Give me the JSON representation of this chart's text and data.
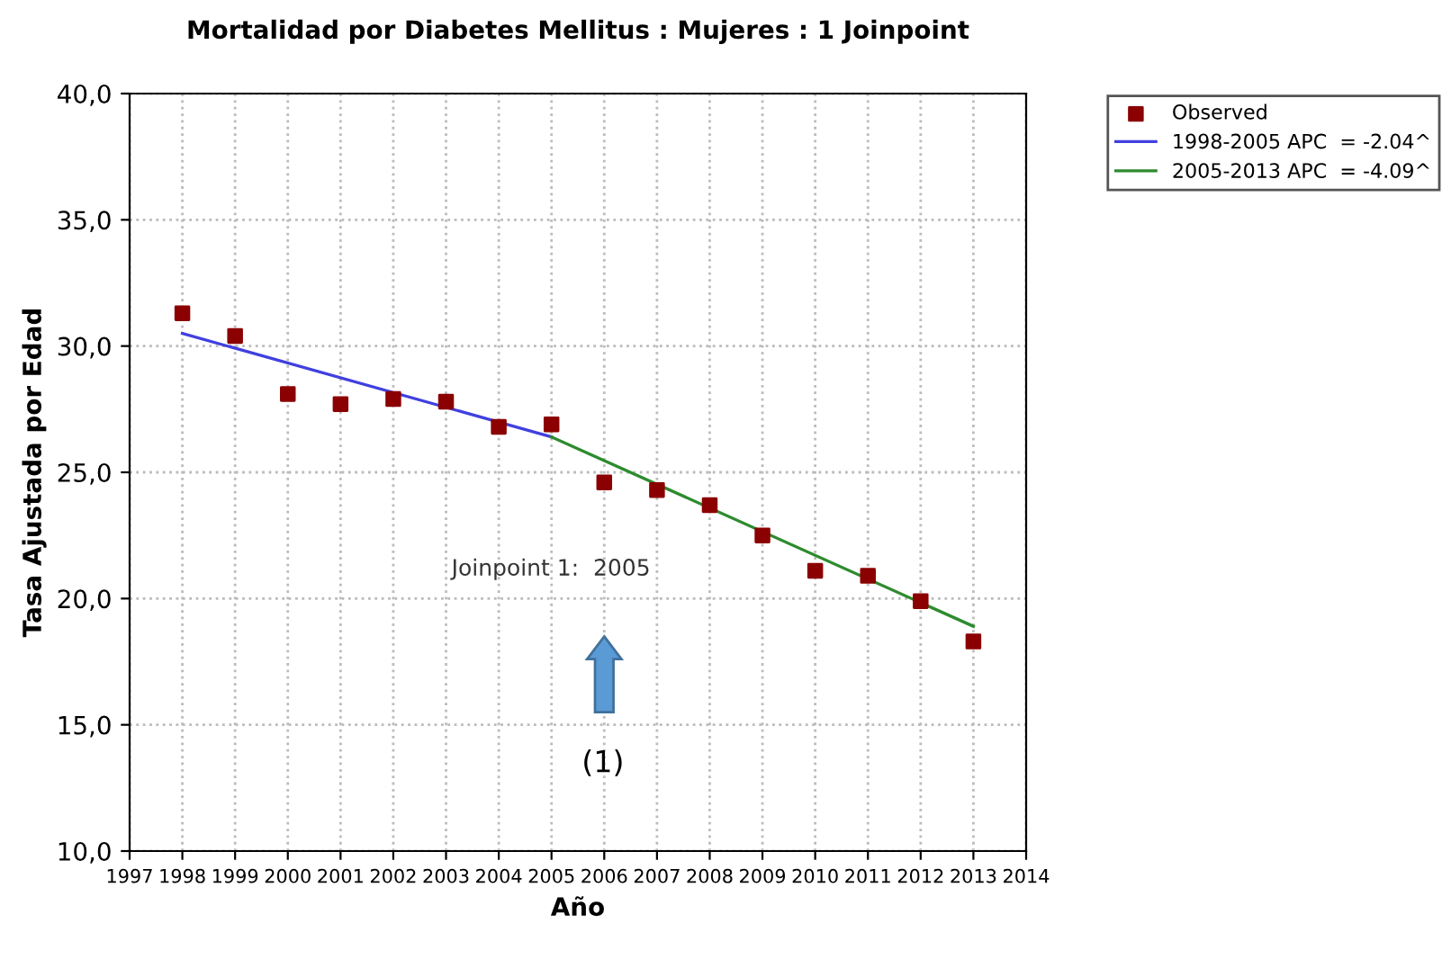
{
  "chart_data": {
    "type": "scatter",
    "title": "Mortalidad por Diabetes Mellitus : Mujeres : 1 Joinpoint",
    "xlabel": "Año",
    "ylabel": "Tasa Ajustada por Edad",
    "series": [
      {
        "name": "Observed",
        "color": "#8b0000",
        "marker": "square",
        "x": [
          1998,
          1999,
          2000,
          2001,
          2002,
          2003,
          2004,
          2005,
          2006,
          2007,
          2008,
          2009,
          2010,
          2011,
          2012,
          2013
        ],
        "values": [
          31.3,
          30.4,
          28.1,
          27.7,
          27.9,
          27.8,
          26.8,
          26.9,
          24.6,
          24.3,
          23.7,
          22.5,
          21.1,
          20.9,
          19.9,
          18.3
        ]
      },
      {
        "name": "1998-2005 APC  = -2.04^",
        "type": "line",
        "color": "#4040e0",
        "x": [
          1998,
          2005
        ],
        "values": [
          30.5,
          26.4
        ]
      },
      {
        "name": "2005-2013 APC  = -4.09^",
        "type": "line",
        "color": "#2e8b2e",
        "x": [
          2005,
          2013
        ],
        "values": [
          26.4,
          18.9
        ]
      }
    ],
    "annotations": [
      "Joinpoint 1:  2005",
      "(1)"
    ],
    "xlim": [
      1997,
      2014
    ],
    "xticks": [
      1997,
      1998,
      1999,
      2000,
      2001,
      2002,
      2003,
      2004,
      2005,
      2006,
      2007,
      2008,
      2009,
      2010,
      2011,
      2012,
      2013,
      2014
    ],
    "ylim": [
      10,
      40
    ],
    "yticks": [
      {
        "value": 10,
        "label": "10,0"
      },
      {
        "value": 15,
        "label": "15,0"
      },
      {
        "value": 20,
        "label": "20,0"
      },
      {
        "value": 25,
        "label": "25,0"
      },
      {
        "value": 30,
        "label": "30,0"
      },
      {
        "value": 35,
        "label": "35,0"
      },
      {
        "value": 40,
        "label": "40,0"
      }
    ],
    "grid": true,
    "legend": "top right"
  }
}
